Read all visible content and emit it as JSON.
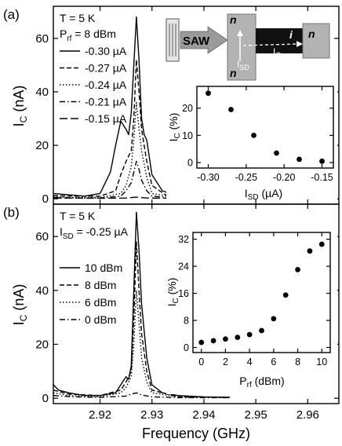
{
  "figure": {
    "xlabel": "Frequency (GHz)"
  },
  "chart_data": [
    {
      "id": "a",
      "panel_label": "(a)",
      "type": "line",
      "ylabel_main": "I",
      "ylabel_sub": "C",
      "ylabel_unit": " (nA)",
      "annotation_T": "T = 5 K",
      "annotation_P_main": "P",
      "annotation_P_sub": "rf",
      "annotation_P_value": " = 8 dBm",
      "xlim": [
        2.911,
        2.966
      ],
      "ylim": [
        -2,
        72
      ],
      "x_ticks": [
        2.92,
        2.93,
        2.94,
        2.95,
        2.96
      ],
      "y_ticks": [
        0,
        20,
        40,
        60
      ],
      "legend": [
        {
          "label": "-0.30 µA",
          "dash": "solid"
        },
        {
          "label": "-0.27 µA",
          "dash": "dash"
        },
        {
          "label": "-0.24 µA",
          "dash": "dot"
        },
        {
          "label": "-0.21 µA",
          "dash": "dashdot"
        },
        {
          "label": "-0.15 µA",
          "dash": "longdash"
        }
      ],
      "series": [
        {
          "name": "-0.30 µA",
          "dash": "solid",
          "x": [
            2.911,
            2.914,
            2.917,
            2.92,
            2.922,
            2.923,
            2.924,
            2.925,
            2.9255,
            2.926,
            2.9265,
            2.927,
            2.9275,
            2.928,
            2.9285,
            2.929,
            2.93,
            2.932,
            2.935,
            2.94,
            2.945
          ],
          "y": [
            2,
            1.5,
            1,
            2,
            10,
            20,
            29,
            26,
            24,
            32,
            50,
            68,
            52,
            30,
            24,
            22,
            9,
            3,
            1,
            0.5,
            0.3
          ]
        },
        {
          "name": "-0.27 µA",
          "dash": "dash",
          "x": [
            2.911,
            2.915,
            2.92,
            2.923,
            2.924,
            2.925,
            2.926,
            2.9265,
            2.927,
            2.9275,
            2.928,
            2.9285,
            2.929,
            2.93,
            2.933,
            2.94,
            2.945
          ],
          "y": [
            1.2,
            1,
            1,
            3,
            9,
            14,
            18,
            30,
            52,
            40,
            26,
            20,
            14,
            5,
            1,
            0.5,
            0.3
          ]
        },
        {
          "name": "-0.24 µA",
          "dash": "dot",
          "x": [
            2.911,
            2.915,
            2.92,
            2.924,
            2.925,
            2.926,
            2.9265,
            2.927,
            2.9275,
            2.928,
            2.929,
            2.93,
            2.935,
            2.945
          ],
          "y": [
            0.8,
            0.5,
            0.5,
            2,
            5,
            12,
            22,
            36,
            26,
            18,
            8,
            2,
            0.5,
            0.3
          ]
        },
        {
          "name": "-0.21 µA",
          "dash": "dashdot",
          "x": [
            2.911,
            2.915,
            2.92,
            2.924,
            2.925,
            2.926,
            2.9265,
            2.927,
            2.9275,
            2.928,
            2.929,
            2.93,
            2.935,
            2.945
          ],
          "y": [
            0.5,
            0.3,
            0.3,
            1,
            3,
            6,
            10,
            14,
            11,
            7,
            3,
            1,
            0.3,
            0.2
          ]
        },
        {
          "name": "-0.15 µA",
          "dash": "longdash",
          "x": [
            2.911,
            2.92,
            2.925,
            2.927,
            2.929,
            2.935,
            2.945
          ],
          "y": [
            0.3,
            0.2,
            0.3,
            0.6,
            0.3,
            0.2,
            0.2
          ]
        }
      ],
      "inset": {
        "type": "scatter",
        "ylabel_main": "I",
        "ylabel_sub": "C",
        "ylabel_unit": " (%)",
        "xlabel_main": "I",
        "xlabel_sub": "SD",
        "xlabel_unit": " (µA)",
        "xlim": [
          -0.315,
          -0.135
        ],
        "ylim": [
          -2,
          28
        ],
        "x_ticks": [
          -0.3,
          -0.25,
          -0.2,
          -0.15
        ],
        "x_tick_labels": [
          "-0.30",
          "-0.25",
          "-0.20",
          "-0.15"
        ],
        "y_ticks": [
          0,
          10,
          20
        ],
        "x": [
          -0.3,
          -0.27,
          -0.24,
          -0.21,
          -0.18,
          -0.15
        ],
        "y": [
          25.5,
          19.5,
          10,
          3.5,
          1.2,
          0.5
        ]
      },
      "device_schematic": {
        "saw_label": "SAW",
        "n_label": "n",
        "i_label": "i",
        "isd_main": "I",
        "isd_sub": "SD",
        "ic_main": "I",
        "ic_sub": "C"
      }
    },
    {
      "id": "b",
      "panel_label": "(b)",
      "type": "line",
      "ylabel_main": "I",
      "ylabel_sub": "C",
      "ylabel_unit": " (nA)",
      "annotation_T": "T = 5 K",
      "annotation_I_main": "I",
      "annotation_I_sub": "SD",
      "annotation_I_value": " = -0.25 µA",
      "xlim": [
        2.911,
        2.966
      ],
      "ylim": [
        -2,
        72
      ],
      "x_ticks": [
        2.92,
        2.93,
        2.94,
        2.95,
        2.96
      ],
      "x_tick_labels": [
        "2.92",
        "2.93",
        "2.94",
        "2.95",
        "2.96"
      ],
      "y_ticks": [
        0,
        20,
        40,
        60
      ],
      "legend": [
        {
          "label": "10 dBm",
          "dash": "solid"
        },
        {
          "label": "8 dBm",
          "dash": "dash"
        },
        {
          "label": "6 dBm",
          "dash": "dot"
        },
        {
          "label": "0 dBm",
          "dash": "dashdot"
        }
      ],
      "series": [
        {
          "name": "10 dBm",
          "dash": "solid",
          "x": [
            2.911,
            2.912,
            2.914,
            2.917,
            2.92,
            2.923,
            2.924,
            2.925,
            2.9255,
            2.926,
            2.9265,
            2.927,
            2.9275,
            2.928,
            2.9285,
            2.929,
            2.93,
            2.932,
            2.935,
            2.94,
            2.945
          ],
          "y": [
            5,
            3,
            2,
            1,
            1,
            2,
            5,
            8,
            7,
            12,
            40,
            69,
            55,
            35,
            25,
            15,
            5,
            2,
            1,
            0.5,
            0.3
          ]
        },
        {
          "name": "8 dBm",
          "dash": "dash",
          "x": [
            2.911,
            2.914,
            2.92,
            2.924,
            2.925,
            2.926,
            2.9265,
            2.927,
            2.9275,
            2.928,
            2.929,
            2.93,
            2.935,
            2.945
          ],
          "y": [
            3,
            1.5,
            1,
            3,
            6,
            10,
            30,
            58,
            40,
            24,
            10,
            3,
            0.5,
            0.3
          ]
        },
        {
          "name": "6 dBm",
          "dash": "dot",
          "x": [
            2.911,
            2.914,
            2.92,
            2.924,
            2.925,
            2.926,
            2.9265,
            2.927,
            2.9275,
            2.928,
            2.929,
            2.93,
            2.935,
            2.945
          ],
          "y": [
            2,
            1,
            0.5,
            2,
            4,
            8,
            20,
            40,
            28,
            15,
            6,
            2,
            0.5,
            0.3
          ]
        },
        {
          "name": "0 dBm",
          "dash": "dashdot",
          "x": [
            2.911,
            2.915,
            2.92,
            2.925,
            2.926,
            2.927,
            2.928,
            2.93,
            2.935,
            2.945
          ],
          "y": [
            1,
            0.5,
            0.3,
            0.8,
            1.5,
            2,
            1.2,
            0.5,
            0.2,
            0.2
          ]
        }
      ],
      "inset": {
        "type": "scatter",
        "ylabel_main": "I",
        "ylabel_sub": "C",
        "ylabel_unit": " (%)",
        "xlabel_main": "P",
        "xlabel_sub": "rf",
        "xlabel_unit": " (dBm)",
        "xlim": [
          -0.7,
          10.7
        ],
        "ylim": [
          -1.5,
          34
        ],
        "x_ticks": [
          0,
          2,
          4,
          6,
          8,
          10
        ],
        "x_tick_labels": [
          "0",
          "2",
          "4",
          "6",
          "8",
          "10"
        ],
        "y_ticks": [
          0,
          8,
          16,
          24,
          32
        ],
        "x": [
          0,
          1,
          2,
          3,
          4,
          5,
          6,
          7,
          8,
          9,
          10
        ],
        "y": [
          1.5,
          2,
          2.5,
          3,
          3.8,
          5,
          8.5,
          15.5,
          23,
          28.5,
          30.5
        ]
      }
    }
  ]
}
